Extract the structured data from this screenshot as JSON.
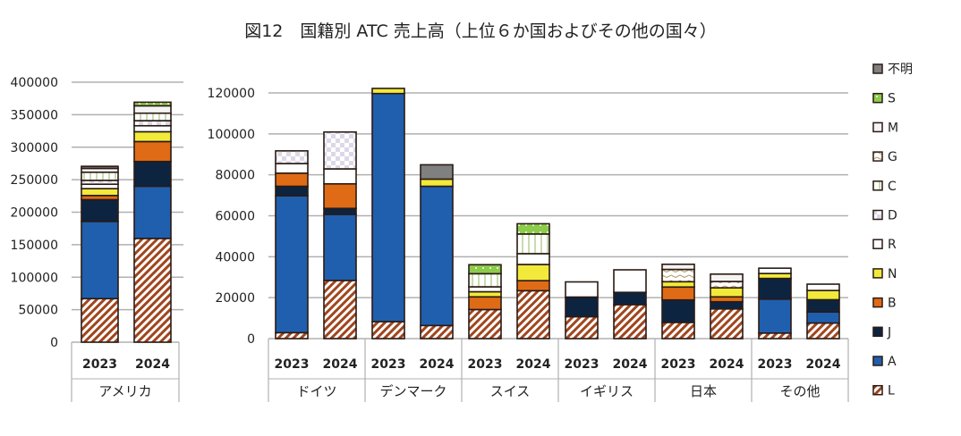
{
  "chart_data": {
    "title": "図12　国籍別 ATC 売上高（上位６か国およびその他の国々）",
    "type": "bar",
    "stacked": true,
    "grid": true,
    "legend_placement": "right",
    "series_order_bottom_to_top": [
      "L",
      "A",
      "J",
      "B",
      "N",
      "R",
      "D",
      "C",
      "G",
      "M",
      "S",
      "不明"
    ],
    "legend": [
      "不明",
      "S",
      "M",
      "G",
      "C",
      "D",
      "R",
      "N",
      "B",
      "J",
      "A",
      "L"
    ],
    "colors": {
      "L": "#a0461e",
      "A": "#1f5fae",
      "J": "#0d2440",
      "B": "#e06b16",
      "N": "#f2ea3a",
      "R": "#ffffff",
      "D": "#dcd8e8",
      "C": "#c8dcae",
      "G": "#b8a070",
      "M": "#f4f4f4",
      "S": "#8ccc4a",
      "不明": "#808080"
    },
    "charts": [
      {
        "ylim": [
          0,
          400000
        ],
        "yticks": [
          "0",
          "50000",
          "100000",
          "150000",
          "200000",
          "250000",
          "300000",
          "350000",
          "400000"
        ],
        "groups": [
          {
            "label": "アメリカ",
            "bars": [
              {
                "year": "2023",
                "values": {
                  "L": 67000,
                  "A": 118800,
                  "J": 33500,
                  "B": 6400,
                  "N": 10500,
                  "R": 6800,
                  "D": 6000,
                  "C": 12500,
                  "M": 5900,
                  "不明": 3200
                }
              },
              {
                "year": "2024",
                "values": {
                  "L": 159600,
                  "A": 80300,
                  "J": 38100,
                  "B": 30700,
                  "N": 15100,
                  "R": 9200,
                  "D": 7800,
                  "C": 11500,
                  "M": 11400,
                  "S": 5500
                }
              }
            ]
          }
        ]
      },
      {
        "ylim": [
          0,
          120000
        ],
        "yticks": [
          "0",
          "20000",
          "40000",
          "60000",
          "80000",
          "100000",
          "120000"
        ],
        "groups": [
          {
            "label": "ドイツ",
            "bars": [
              {
                "year": "2023",
                "values": {
                  "L": 2900,
                  "A": 66900,
                  "J": 4600,
                  "B": 6400,
                  "R": 4700,
                  "D": 6200
                }
              },
              {
                "year": "2024",
                "values": {
                  "L": 28400,
                  "A": 32300,
                  "J": 2900,
                  "B": 12000,
                  "R": 7300,
                  "D": 18000
                }
              }
            ]
          },
          {
            "label": "デンマーク",
            "bars": [
              {
                "year": "2023",
                "values": {
                  "L": 8300,
                  "A": 111400,
                  "N": 2500
                }
              },
              {
                "year": "2024",
                "values": {
                  "L": 6400,
                  "A": 68000,
                  "N": 3500,
                  "不明": 7000
                }
              }
            ]
          },
          {
            "label": "スイス",
            "bars": [
              {
                "year": "2023",
                "values": {
                  "L": 14200,
                  "B": 6200,
                  "N": 2500,
                  "R": 2400,
                  "C": 6400,
                  "S": 4400
                }
              },
              {
                "year": "2024",
                "values": {
                  "L": 23400,
                  "B": 4900,
                  "N": 7900,
                  "R": 5300,
                  "C": 9600,
                  "S": 5000
                }
              }
            ]
          },
          {
            "label": "イギリス",
            "bars": [
              {
                "year": "2023",
                "values": {
                  "L": 10700,
                  "J": 9600,
                  "R": 7400
                }
              },
              {
                "year": "2024",
                "values": {
                  "L": 16600,
                  "J": 6000,
                  "R": 11000
                }
              }
            ]
          },
          {
            "label": "日本",
            "bars": [
              {
                "year": "2023",
                "values": {
                  "L": 7900,
                  "J": 11000,
                  "B": 6300,
                  "N": 2600,
                  "G": 6000,
                  "M": 2500
                }
              },
              {
                "year": "2024",
                "values": {
                  "L": 14500,
                  "J": 3500,
                  "B": 2400,
                  "N": 4400,
                  "G": 3100,
                  "M": 3600
                }
              }
            ]
          },
          {
            "label": "その他",
            "bars": [
              {
                "year": "2023",
                "values": {
                  "L": 2700,
                  "A": 16600,
                  "J": 10100,
                  "N": 2400,
                  "R": 2600
                }
              },
              {
                "year": "2024",
                "values": {
                  "L": 7600,
                  "A": 5400,
                  "J": 6000,
                  "N": 4500,
                  "R": 3100
                }
              }
            ]
          }
        ]
      }
    ]
  }
}
